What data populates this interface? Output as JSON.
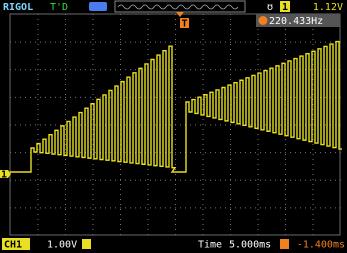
{
  "header": {
    "brand": "RIGOL",
    "status": "T'D",
    "trigger_channel": "1",
    "trigger_level": "1.12V"
  },
  "trigger_marker": "T",
  "frequency": "220.433Hz",
  "channel_marker": "1",
  "footer": {
    "channel": "CH1",
    "scale": "1.00V",
    "time_label": "Time",
    "time_scale": "5.000ms",
    "trigger_offset": "-1.400ms"
  }
}
